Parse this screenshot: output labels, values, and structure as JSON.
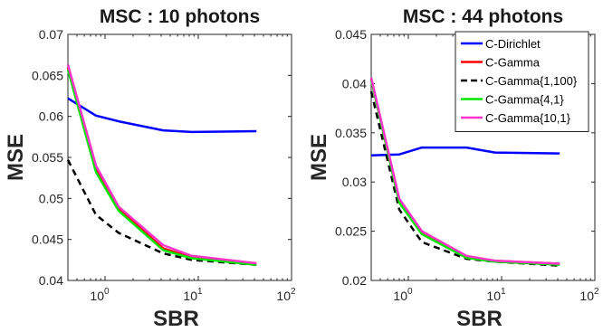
{
  "chart_data": [
    {
      "type": "line",
      "title": "MSC : 10 photons",
      "xlabel": "SBR",
      "ylabel": "MSE",
      "xscale": "log",
      "xlim": [
        0.4,
        100
      ],
      "ylim": [
        0.04,
        0.07
      ],
      "yticks": [
        "0.04",
        "0.045",
        "0.05",
        "0.055",
        "0.06",
        "0.065",
        "0.07"
      ],
      "xticks": [
        {
          "base": "10",
          "exp": "0"
        },
        {
          "base": "10",
          "exp": "1"
        },
        {
          "base": "10",
          "exp": "2"
        }
      ],
      "grid": false,
      "series": [
        {
          "name": "C-Dirichlet",
          "color": "#0000ff",
          "dash": false,
          "x": [
            0.4,
            0.8,
            1.4,
            4.2,
            8.5,
            42
          ],
          "y": [
            0.0622,
            0.0601,
            0.0594,
            0.0583,
            0.0581,
            0.0582
          ]
        },
        {
          "name": "C-Gamma",
          "color": "#ff0000",
          "dash": false,
          "x": [
            0.4,
            0.8,
            1.4,
            4.2,
            8.5,
            42
          ],
          "y": [
            0.066,
            0.0535,
            0.0487,
            0.0439,
            0.0428,
            0.042
          ]
        },
        {
          "name": "C-Gamma{1,100}",
          "color": "#000000",
          "dash": true,
          "x": [
            0.4,
            0.8,
            1.4,
            4.2,
            8.5,
            42
          ],
          "y": [
            0.0547,
            0.048,
            0.0458,
            0.0433,
            0.0425,
            0.0419
          ]
        },
        {
          "name": "C-Gamma{4,1}",
          "color": "#00e600",
          "dash": false,
          "x": [
            0.4,
            0.8,
            1.4,
            4.2,
            8.5,
            42
          ],
          "y": [
            0.0657,
            0.0532,
            0.0485,
            0.0437,
            0.0427,
            0.0419
          ]
        },
        {
          "name": "C-Gamma{10,1}",
          "color": "#ff33cc",
          "dash": false,
          "x": [
            0.4,
            0.8,
            1.4,
            4.2,
            8.5,
            42
          ],
          "y": [
            0.0663,
            0.054,
            0.049,
            0.0443,
            0.043,
            0.0421
          ]
        }
      ]
    },
    {
      "type": "line",
      "title": "MSC : 44 photons",
      "xlabel": "SBR",
      "ylabel": "MSE",
      "xscale": "log",
      "xlim": [
        0.4,
        100
      ],
      "ylim": [
        0.02,
        0.045
      ],
      "yticks": [
        "0.02",
        "0.025",
        "0.03",
        "0.035",
        "0.04",
        "0.045"
      ],
      "xticks": [
        {
          "base": "10",
          "exp": "0"
        },
        {
          "base": "10",
          "exp": "1"
        },
        {
          "base": "10",
          "exp": "2"
        }
      ],
      "grid": false,
      "legend": "top-right",
      "series": [
        {
          "name": "C-Dirichlet",
          "color": "#0000ff",
          "dash": false,
          "x": [
            0.4,
            0.8,
            1.4,
            4.2,
            8.5,
            42
          ],
          "y": [
            0.0327,
            0.0328,
            0.0335,
            0.0335,
            0.033,
            0.0329
          ]
        },
        {
          "name": "C-Gamma",
          "color": "#ff0000",
          "dash": false,
          "x": [
            0.4,
            0.8,
            1.4,
            4.2,
            8.5,
            42
          ],
          "y": [
            0.0405,
            0.028,
            0.0248,
            0.0224,
            0.022,
            0.0217
          ]
        },
        {
          "name": "C-Gamma{1,100}",
          "color": "#000000",
          "dash": true,
          "x": [
            0.4,
            0.8,
            1.4,
            4.2,
            8.5,
            42
          ],
          "y": [
            0.0392,
            0.0272,
            0.0239,
            0.0222,
            0.0219,
            0.0215
          ]
        },
        {
          "name": "C-Gamma{4,1}",
          "color": "#00e600",
          "dash": false,
          "x": [
            0.4,
            0.8,
            1.4,
            4.2,
            8.5,
            42
          ],
          "y": [
            0.0404,
            0.0279,
            0.0247,
            0.0223,
            0.0219,
            0.0216
          ]
        },
        {
          "name": "C-Gamma{10,1}",
          "color": "#ff33cc",
          "dash": false,
          "x": [
            0.4,
            0.8,
            1.4,
            4.2,
            8.5,
            42
          ],
          "y": [
            0.0406,
            0.0283,
            0.025,
            0.0225,
            0.022,
            0.0217
          ]
        }
      ]
    }
  ]
}
